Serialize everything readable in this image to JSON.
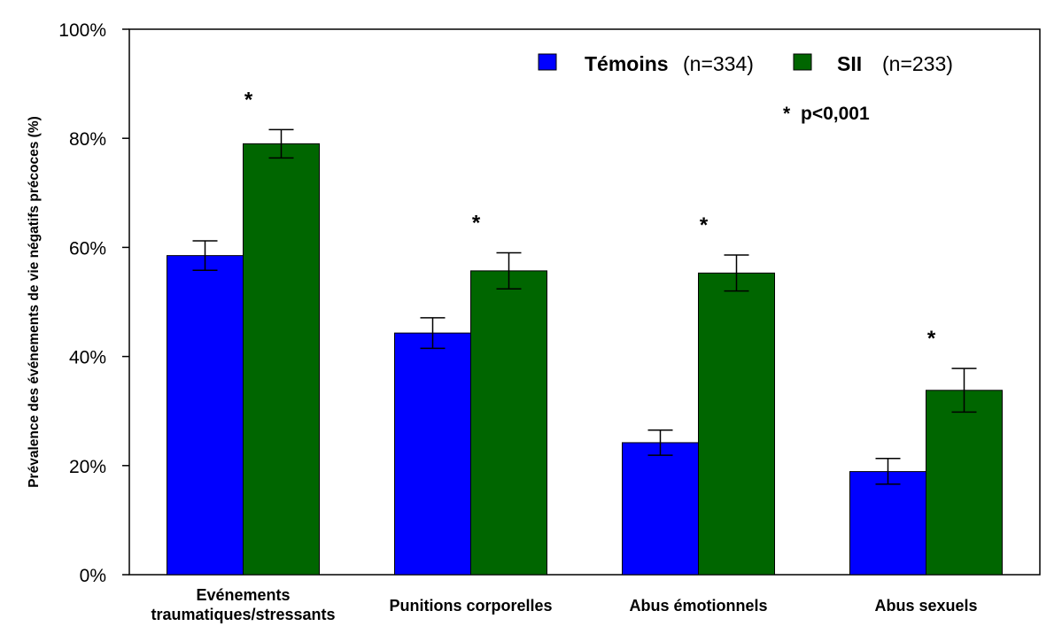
{
  "chart_data": {
    "type": "bar",
    "title": "",
    "xlabel": "",
    "ylabel": "Prévalence des événements de vie négatifs précoces (%)",
    "ylim": [
      0,
      100
    ],
    "yticks": [
      "0%",
      "20%",
      "40%",
      "60%",
      "80%",
      "100%"
    ],
    "categories": [
      [
        "Evénements",
        "traumatiques/stressants"
      ],
      [
        "Punitions corporelles"
      ],
      [
        "Abus émotionnels"
      ],
      [
        "Abus sexuels"
      ]
    ],
    "series": [
      {
        "name": "Témoins (n=334)",
        "name_parts": [
          "Témoins",
          "(n=334)"
        ],
        "color": "#0000ff",
        "values": [
          58.5,
          44.3,
          24.2,
          18.9
        ],
        "err_high": [
          61.2,
          47.1,
          26.5,
          21.3
        ],
        "err_low": [
          55.8,
          41.5,
          21.9,
          16.6
        ]
      },
      {
        "name": "SII (n=233)",
        "name_parts": [
          "SII",
          "(n=233)"
        ],
        "color": "#006600",
        "values": [
          79.0,
          55.7,
          55.3,
          33.8
        ],
        "err_high": [
          81.6,
          59.0,
          58.6,
          37.8
        ],
        "err_low": [
          76.4,
          52.4,
          52.0,
          29.8
        ]
      }
    ],
    "significance_marker": "*",
    "significant": [
      true,
      true,
      true,
      true
    ],
    "annotation": {
      "marker": "*",
      "text": "p<0,001"
    },
    "legend_position": "top-right",
    "grid": false
  }
}
